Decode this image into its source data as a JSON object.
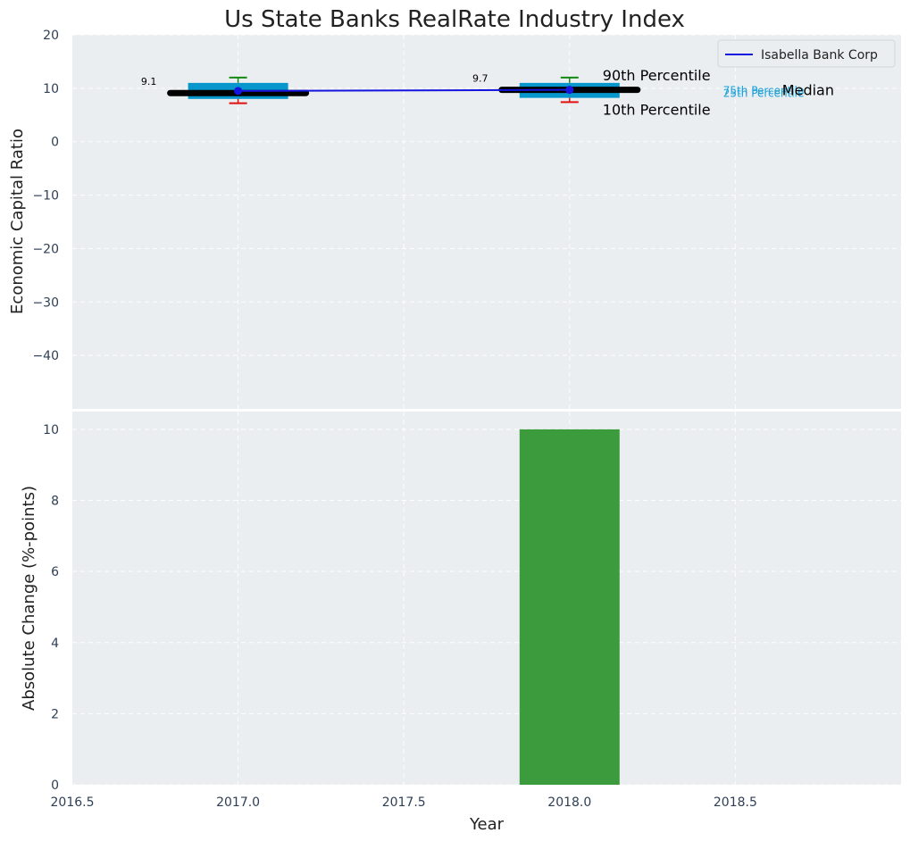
{
  "chart_data": {
    "title": "Us State Banks RealRate Industry Index",
    "xlabel": "Year",
    "xlim": [
      2016.5,
      2019.0
    ],
    "x_ticks": [
      "2016.5",
      "2017.0",
      "2017.5",
      "2018.0",
      "2018.5"
    ],
    "x_tick_values": [
      2016.5,
      2017.0,
      2017.5,
      2018.0,
      2018.5
    ],
    "grid": true,
    "legend_position": "top-right",
    "colors": {
      "background": "#eaeef0",
      "box": "#0897cc",
      "company": "#1515e0",
      "median": "#000000",
      "whisker_high": "#138a13",
      "whisker_low": "#e01010",
      "bar": "#3c9b3c",
      "small_label": "#1ba1d8"
    },
    "panels": [
      {
        "type": "box",
        "ylabel": "Economic Capital Ratio",
        "ylim": [
          -50,
          20
        ],
        "y_ticks": [
          "20",
          "10",
          "0",
          "−10",
          "−20",
          "−30",
          "−40"
        ],
        "y_tick_values": [
          20,
          10,
          0,
          -10,
          -20,
          -30,
          -40
        ],
        "boxes": [
          {
            "x": 2017.0,
            "p10": 7.2,
            "p25": 8.0,
            "median": 9.1,
            "p75": 11.0,
            "p90": 12.0
          },
          {
            "x": 2018.0,
            "p10": 7.4,
            "p25": 8.2,
            "median": 9.7,
            "p75": 11.0,
            "p90": 12.0
          }
        ],
        "company_series": {
          "name": "Isabella Bank Corp",
          "x": [
            2017.0,
            2018.0
          ],
          "y": [
            9.5,
            9.7
          ]
        },
        "median_labels": [
          {
            "x": 2017.0,
            "text": "9.1"
          },
          {
            "x": 2018.0,
            "text": "9.7"
          }
        ],
        "annotations": {
          "p90": "90th Percentile",
          "p10": "10th Percentile",
          "median": "Median",
          "p75": "75th Percentile",
          "p25": "25th Percentile"
        }
      },
      {
        "type": "bar",
        "ylabel": "Absolute Change (%-points)",
        "ylim": [
          0,
          10.5
        ],
        "y_ticks": [
          "0",
          "2",
          "4",
          "6",
          "8",
          "10"
        ],
        "y_tick_values": [
          0,
          2,
          4,
          6,
          8,
          10
        ],
        "x": [
          2018.0
        ],
        "values": [
          10.0
        ]
      }
    ]
  }
}
